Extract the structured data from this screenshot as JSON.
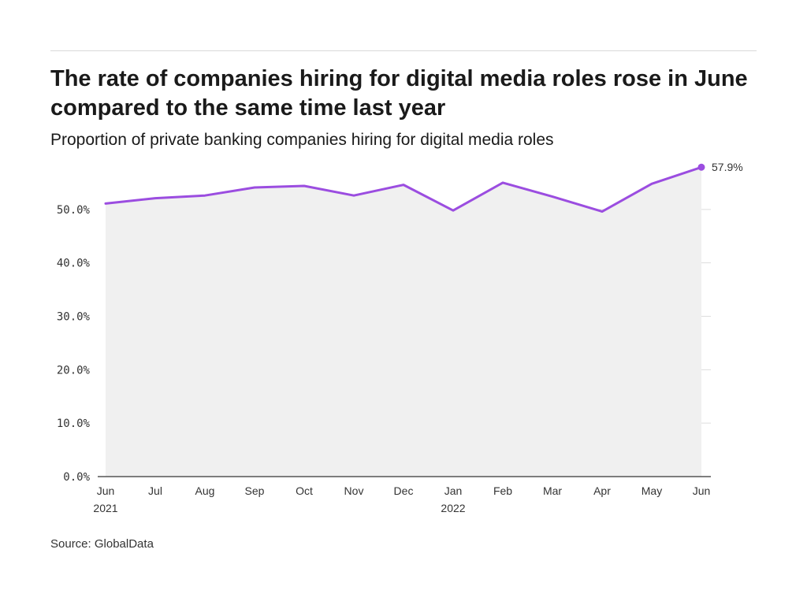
{
  "header": {
    "title": "The rate of companies hiring for digital media roles rose in June compared to the same time last year",
    "subtitle": "Proportion of private banking companies hiring for digital media roles"
  },
  "footer": {
    "source": "Source: GlobalData"
  },
  "colors": {
    "line": "#9b4de0",
    "area": "#f0f0f0",
    "grid": "#dddddd",
    "axis": "#333333"
  },
  "chart_data": {
    "type": "area",
    "title": "The rate of companies hiring for digital media roles rose in June compared to the same time last year",
    "subtitle": "Proportion of private banking companies hiring for digital media roles",
    "xlabel": "",
    "ylabel": "",
    "categories": [
      "Jun",
      "Jul",
      "Aug",
      "Sep",
      "Oct",
      "Nov",
      "Dec",
      "Jan",
      "Feb",
      "Mar",
      "Apr",
      "May",
      "Jun"
    ],
    "category_sublabels": [
      "2021",
      "",
      "",
      "",
      "",
      "",
      "",
      "2022",
      "",
      "",
      "",
      "",
      ""
    ],
    "values": [
      51.1,
      52.1,
      52.6,
      54.1,
      54.4,
      52.6,
      54.6,
      49.8,
      55.0,
      52.4,
      49.6,
      54.8,
      57.9
    ],
    "ylim": [
      0,
      60
    ],
    "yticks": [
      0,
      10,
      20,
      30,
      40,
      50
    ],
    "ytick_labels": [
      "0.0%",
      "10.0%",
      "20.0%",
      "30.0%",
      "40.0%",
      "50.0%"
    ],
    "end_label": "57.9%",
    "grid": true,
    "legend": "none"
  }
}
